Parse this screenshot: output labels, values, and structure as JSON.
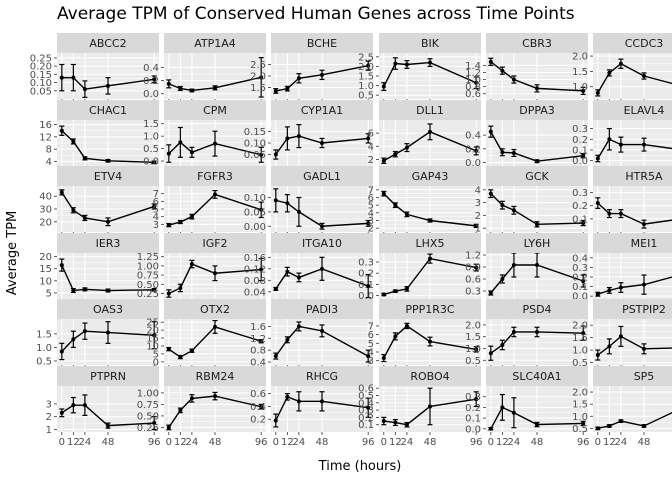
{
  "chart_data": {
    "type": "line",
    "title": "Average TPM of Conserved Human Genes across Time Points",
    "xlabel": "Time (hours)",
    "ylabel": "Average TPM",
    "x": [
      0,
      12,
      24,
      48,
      96
    ],
    "x_tick_labels": [
      "0",
      "12",
      "24",
      "48",
      "96"
    ],
    "panels": [
      {
        "name": "ABCC2",
        "ylim": [
          0,
          0.28
        ],
        "yticks": [
          0.05,
          0.1,
          0.15,
          0.2,
          0.25
        ],
        "ytick_labels": [
          "0.05",
          "0.10",
          "0.15",
          "0.20",
          "0.25"
        ],
        "values": [
          0.13,
          0.13,
          0.06,
          0.08,
          0.12
        ],
        "err": [
          0.08,
          0.08,
          0.05,
          0.05,
          0.02
        ]
      },
      {
        "name": "ATP1A4",
        "ylim": [
          -0.08,
          0.62
        ],
        "yticks": [
          0.0,
          0.2,
          0.4
        ],
        "ytick_labels": [
          "0.0",
          "0.2",
          "0.4"
        ],
        "values": [
          0.15,
          0.08,
          0.05,
          0.09,
          0.25
        ],
        "err": [
          0.06,
          0.03,
          0.02,
          0.03,
          0.3
        ]
      },
      {
        "name": "BCHE",
        "ylim": [
          1.0,
          3.0
        ],
        "yticks": [
          1.5,
          2.0,
          2.5
        ],
        "ytick_labels": [
          "1.5",
          "2.0",
          "2.5"
        ],
        "values": [
          1.35,
          1.45,
          1.9,
          2.05,
          2.45
        ],
        "err": [
          0.1,
          0.1,
          0.2,
          0.2,
          0.2
        ]
      },
      {
        "name": "BIK",
        "ylim": [
          0.3,
          2.7
        ],
        "yticks": [
          0.5,
          1.0,
          1.5,
          2.0,
          2.5
        ],
        "ytick_labels": [
          "0.5",
          "1.0",
          "1.5",
          "2.0",
          "2.5"
        ],
        "values": [
          0.95,
          2.15,
          2.1,
          2.2,
          1.15
        ],
        "err": [
          0.2,
          0.3,
          0.2,
          0.2,
          0.3
        ]
      },
      {
        "name": "CBR3",
        "ylim": [
          0.45,
          1.75
        ],
        "yticks": [
          0.6,
          0.8,
          1.0,
          1.2,
          1.4
        ],
        "ytick_labels": [
          "0.6",
          "0.8",
          "1.0",
          "1.2",
          "1.4"
        ],
        "values": [
          1.5,
          1.25,
          1.0,
          0.75,
          0.68
        ],
        "err": [
          0.1,
          0.1,
          0.1,
          0.1,
          0.1
        ]
      },
      {
        "name": "CCDC3",
        "ylim": [
          0.6,
          2.1
        ],
        "yticks": [
          1.0,
          1.5,
          2.0
        ],
        "ytick_labels": [
          "1.0",
          "1.5",
          "2.0"
        ],
        "values": [
          0.8,
          1.45,
          1.75,
          1.35,
          0.95
        ],
        "err": [
          0.1,
          0.1,
          0.15,
          0.1,
          0.1
        ]
      },
      {
        "name": "CHAC1",
        "ylim": [
          2.5,
          17.5
        ],
        "yticks": [
          4,
          8,
          12,
          16
        ],
        "ytick_labels": [
          "4",
          "8",
          "12",
          "16"
        ],
        "values": [
          14.0,
          10.5,
          5.0,
          4.2,
          3.7
        ],
        "err": [
          1.5,
          0.8,
          0.5,
          0.4,
          0.4
        ]
      },
      {
        "name": "CPM",
        "ylim": [
          -0.2,
          1.65
        ],
        "yticks": [
          0.0,
          0.5,
          1.0,
          1.5
        ],
        "ytick_labels": [
          "0.0",
          "0.5",
          "1.0",
          "1.5"
        ],
        "values": [
          0.3,
          0.75,
          0.35,
          0.7,
          0.25
        ],
        "err": [
          0.35,
          0.6,
          0.2,
          0.5,
          0.3
        ]
      },
      {
        "name": "CYP1A1",
        "ylim": [
          0.0,
          0.2
        ],
        "yticks": [
          0.05,
          0.1,
          0.15
        ],
        "ytick_labels": [
          "0.05",
          "0.10",
          "0.15"
        ],
        "values": [
          0.05,
          0.12,
          0.13,
          0.1,
          0.12
        ],
        "err": [
          0.02,
          0.05,
          0.05,
          0.02,
          0.02
        ]
      },
      {
        "name": "DLL1",
        "ylim": [
          1.0,
          8.0
        ],
        "yticks": [
          2,
          4,
          6
        ],
        "ytick_labels": [
          "2",
          "4",
          "6"
        ],
        "values": [
          1.8,
          2.8,
          3.8,
          6.2,
          3.3
        ],
        "err": [
          0.4,
          0.4,
          0.6,
          1.2,
          0.6
        ]
      },
      {
        "name": "DPPA3",
        "ylim": [
          -0.05,
          0.62
        ],
        "yticks": [
          0.0,
          0.2,
          0.4
        ],
        "ytick_labels": [
          "0.0",
          "0.2",
          "0.4"
        ],
        "values": [
          0.45,
          0.15,
          0.14,
          0.02,
          0.1
        ],
        "err": [
          0.08,
          0.05,
          0.05,
          0.02,
          0.03
        ]
      },
      {
        "name": "ELAVL4",
        "ylim": [
          -0.05,
          0.38
        ],
        "yticks": [
          0.0,
          0.1,
          0.2,
          0.3
        ],
        "ytick_labels": [
          "0.0",
          "0.1",
          "0.2",
          "0.3"
        ],
        "values": [
          0.02,
          0.2,
          0.15,
          0.15,
          0.09
        ],
        "err": [
          0.03,
          0.1,
          0.07,
          0.06,
          0.02
        ]
      },
      {
        "name": "ETV4",
        "ylim": [
          12,
          48
        ],
        "yticks": [
          20,
          30,
          40
        ],
        "ytick_labels": [
          "20",
          "30",
          "40"
        ],
        "values": [
          43,
          29,
          23,
          20,
          32
        ],
        "err": [
          2,
          2,
          2,
          3,
          2
        ]
      },
      {
        "name": "FGFR3",
        "ylim": [
          2.0,
          8.0
        ],
        "yticks": [
          3,
          4,
          5,
          6,
          7
        ],
        "ytick_labels": [
          "3",
          "4",
          "5",
          "6",
          "7"
        ],
        "values": [
          2.9,
          3.3,
          4.0,
          6.9,
          4.9
        ],
        "err": [
          0.2,
          0.2,
          0.3,
          0.5,
          1.0
        ]
      },
      {
        "name": "GADL1",
        "ylim": [
          -0.02,
          0.14
        ],
        "yticks": [
          0.0,
          0.05,
          0.1
        ],
        "ytick_labels": [
          "0.00",
          "0.05",
          "0.10"
        ],
        "values": [
          0.09,
          0.08,
          0.05,
          0.0,
          0.01
        ],
        "err": [
          0.04,
          0.03,
          0.05,
          0.01,
          0.01
        ]
      },
      {
        "name": "GAP43",
        "ylim": [
          1.5,
          7.5
        ],
        "yticks": [
          2,
          3,
          4,
          5,
          6,
          7
        ],
        "ytick_labels": [
          "2",
          "3",
          "4",
          "5",
          "6",
          "7"
        ],
        "values": [
          6.5,
          5.0,
          3.8,
          3.0,
          2.3
        ],
        "err": [
          0.3,
          0.3,
          0.3,
          0.2,
          0.2
        ]
      },
      {
        "name": "GCK",
        "ylim": [
          0.7,
          4.3
        ],
        "yticks": [
          1,
          2,
          3,
          4
        ],
        "ytick_labels": [
          "1",
          "2",
          "3",
          "4"
        ],
        "values": [
          3.7,
          2.8,
          2.4,
          1.3,
          1.4
        ],
        "err": [
          0.3,
          0.3,
          0.3,
          0.2,
          0.2
        ]
      },
      {
        "name": "HTR5A",
        "ylim": [
          0.0,
          0.35
        ],
        "yticks": [
          0.1,
          0.2,
          0.3
        ],
        "ytick_labels": [
          "0.1",
          "0.2",
          "0.3"
        ],
        "values": [
          0.22,
          0.14,
          0.14,
          0.06,
          0.11
        ],
        "err": [
          0.04,
          0.03,
          0.03,
          0.03,
          0.03
        ]
      },
      {
        "name": "IER3",
        "ylim": [
          2.5,
          21.5
        ],
        "yticks": [
          5,
          10,
          15,
          20
        ],
        "ytick_labels": [
          "5",
          "10",
          "15",
          "20"
        ],
        "values": [
          16.5,
          6.0,
          6.5,
          6.0,
          6.3
        ],
        "err": [
          2.5,
          0.8,
          0.6,
          0.6,
          0.5
        ]
      },
      {
        "name": "IGF2",
        "ylim": [
          0.1,
          1.35
        ],
        "yticks": [
          0.25,
          0.5,
          0.75,
          1.0,
          1.25
        ],
        "ytick_labels": [
          "0.25",
          "0.50",
          "0.75",
          "1.00",
          "1.25"
        ],
        "values": [
          0.25,
          0.4,
          1.05,
          0.8,
          0.9
        ],
        "err": [
          0.1,
          0.1,
          0.1,
          0.2,
          0.3
        ]
      },
      {
        "name": "ITGA10",
        "ylim": [
          0.015,
          0.175
        ],
        "yticks": [
          0.04,
          0.08,
          0.12,
          0.16
        ],
        "ytick_labels": [
          "0.04",
          "0.08",
          "0.12",
          "0.16"
        ],
        "values": [
          0.05,
          0.11,
          0.09,
          0.12,
          0.06
        ],
        "err": [
          0.005,
          0.015,
          0.015,
          0.04,
          0.04
        ]
      },
      {
        "name": "LHX5",
        "ylim": [
          -0.03,
          0.38
        ],
        "yticks": [
          0.0,
          0.1,
          0.2,
          0.3
        ],
        "ytick_labels": [
          "0.0",
          "0.1",
          "0.2",
          "0.3"
        ],
        "values": [
          0.01,
          0.04,
          0.06,
          0.33,
          0.25
        ],
        "err": [
          0.01,
          0.01,
          0.02,
          0.04,
          0.03
        ]
      },
      {
        "name": "LY6H",
        "ylim": [
          0.1,
          1.25
        ],
        "yticks": [
          0.3,
          0.6,
          0.9,
          1.2
        ],
        "ytick_labels": [
          "0.3",
          "0.6",
          "0.9",
          "1.2"
        ],
        "values": [
          0.25,
          0.6,
          0.95,
          0.95,
          0.55
        ],
        "err": [
          0.05,
          0.1,
          0.3,
          0.3,
          0.15
        ]
      },
      {
        "name": "MEI1",
        "ylim": [
          -0.03,
          0.45
        ],
        "yticks": [
          0.0,
          0.1,
          0.2,
          0.3,
          0.4
        ],
        "ytick_labels": [
          "0.0",
          "0.1",
          "0.2",
          "0.3",
          "0.4"
        ],
        "values": [
          0.02,
          0.06,
          0.09,
          0.12,
          0.25
        ],
        "err": [
          0.02,
          0.03,
          0.05,
          0.1,
          0.18
        ]
      },
      {
        "name": "OAS3",
        "ylim": [
          0.35,
          2.05
        ],
        "yticks": [
          0.5,
          1.0,
          1.5
        ],
        "ytick_labels": [
          "0.5",
          "1.0",
          "1.5"
        ],
        "values": [
          0.85,
          1.3,
          1.6,
          1.55,
          1.45
        ],
        "err": [
          0.3,
          0.3,
          0.3,
          0.4,
          0.5
        ]
      },
      {
        "name": "OTX2",
        "ylim": [
          -2,
          27
        ],
        "yticks": [
          0,
          5,
          10,
          15,
          20,
          25
        ],
        "ytick_labels": [
          "0",
          "5",
          "10",
          "15",
          "20",
          "25"
        ],
        "values": [
          8,
          3,
          7,
          22,
          13
        ],
        "err": [
          1,
          1,
          1,
          4,
          1
        ]
      },
      {
        "name": "PADI3",
        "ylim": [
          0.3,
          1.85
        ],
        "yticks": [
          0.4,
          0.8,
          1.2,
          1.6
        ],
        "ytick_labels": [
          "0.4",
          "0.8",
          "1.2",
          "1.6"
        ],
        "values": [
          0.6,
          1.15,
          1.6,
          1.45,
          0.6
        ],
        "err": [
          0.1,
          0.1,
          0.15,
          0.2,
          0.2
        ]
      },
      {
        "name": "PPP1R3C",
        "ylim": [
          2.5,
          7.8
        ],
        "yticks": [
          3,
          4,
          5,
          6,
          7
        ],
        "ytick_labels": [
          "3",
          "4",
          "5",
          "6",
          "7"
        ],
        "values": [
          3.3,
          5.8,
          7.0,
          5.2,
          4.3
        ],
        "err": [
          0.4,
          0.4,
          0.3,
          0.5,
          0.3
        ]
      },
      {
        "name": "PSD4",
        "ylim": [
          0.3,
          2.25
        ],
        "yticks": [
          0.5,
          1.0,
          1.5,
          2.0
        ],
        "ytick_labels": [
          "0.5",
          "1.0",
          "1.5",
          "2.0"
        ],
        "values": [
          0.8,
          1.15,
          1.7,
          1.7,
          1.65
        ],
        "err": [
          0.3,
          0.2,
          0.2,
          0.2,
          0.3
        ]
      },
      {
        "name": "PSTPIP2",
        "ylim": [
          0.4,
          2.25
        ],
        "yticks": [
          0.5,
          1.0,
          1.5,
          2.0
        ],
        "ytick_labels": [
          "0.5",
          "1.0",
          "1.5",
          "2.0"
        ],
        "values": [
          0.8,
          1.15,
          1.55,
          1.05,
          1.1
        ],
        "err": [
          0.2,
          0.3,
          0.4,
          0.2,
          0.2
        ]
      },
      {
        "name": "PTPRN",
        "ylim": [
          0.8,
          4.4
        ],
        "yticks": [
          1,
          2,
          3
        ],
        "ytick_labels": [
          "1",
          "2",
          "3"
        ],
        "values": [
          2.3,
          2.9,
          2.9,
          1.3,
          1.5
        ],
        "err": [
          0.3,
          0.6,
          0.8,
          0.2,
          0.5
        ]
      },
      {
        "name": "RBM24",
        "ylim": [
          0.15,
          1.15
        ],
        "yticks": [
          0.25,
          0.5,
          0.75,
          1.0
        ],
        "ytick_labels": [
          "0.25",
          "0.50",
          "0.75",
          "1.00"
        ],
        "values": [
          0.25,
          0.62,
          0.88,
          0.93,
          0.7
        ],
        "err": [
          0.05,
          0.05,
          0.08,
          0.08,
          0.05
        ]
      },
      {
        "name": "RHCG",
        "ylim": [
          0.0,
          0.72
        ],
        "yticks": [
          0.2,
          0.4,
          0.6
        ],
        "ytick_labels": [
          "0.2",
          "0.4",
          "0.6"
        ],
        "values": [
          0.18,
          0.55,
          0.48,
          0.48,
          0.38
        ],
        "err": [
          0.1,
          0.05,
          0.15,
          0.15,
          0.15
        ]
      },
      {
        "name": "ROBO4",
        "ylim": [
          0.0,
          0.63
        ],
        "yticks": [
          0.1,
          0.2,
          0.3,
          0.4,
          0.5,
          0.6
        ],
        "ytick_labels": [
          "0.1",
          "0.2",
          "0.3",
          "0.4",
          "0.5",
          "0.6"
        ],
        "values": [
          0.15,
          0.13,
          0.1,
          0.35,
          0.45
        ],
        "err": [
          0.05,
          0.04,
          0.03,
          0.25,
          0.1
        ]
      },
      {
        "name": "SLC40A1",
        "ylim": [
          -0.03,
          0.4
        ],
        "yticks": [
          0.0,
          0.1,
          0.2,
          0.3
        ],
        "ytick_labels": [
          "0.0",
          "0.1",
          "0.2",
          "0.3"
        ],
        "values": [
          0.0,
          0.2,
          0.15,
          0.04,
          0.05
        ],
        "err": [
          0.01,
          0.12,
          0.14,
          0.02,
          0.02
        ]
      },
      {
        "name": "SP5",
        "ylim": [
          0.35,
          2.25
        ],
        "yticks": [
          0.5,
          1.0,
          1.5,
          2.0
        ],
        "ytick_labels": [
          "0.5",
          "1.0",
          "1.5",
          "2.0"
        ],
        "values": [
          0.5,
          0.6,
          0.8,
          0.6,
          1.5
        ],
        "err": [
          0.05,
          0.05,
          0.05,
          0.05,
          0.6
        ]
      }
    ]
  }
}
